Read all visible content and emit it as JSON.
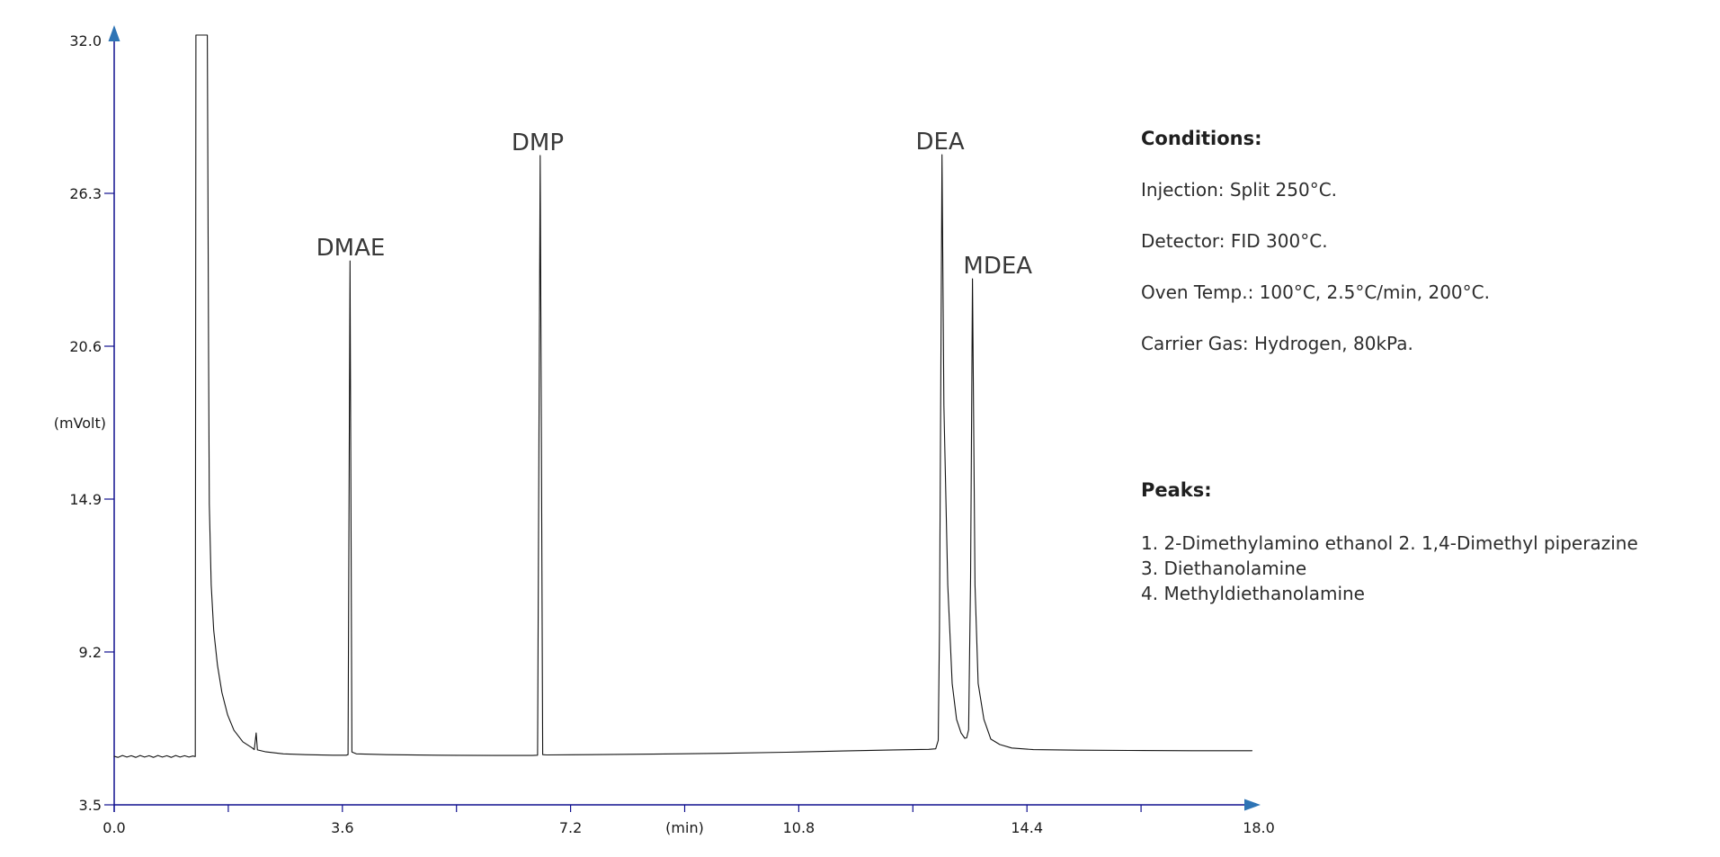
{
  "chart_data": {
    "type": "line",
    "title": "",
    "xlabel": "(min)",
    "ylabel": "(mVolt)",
    "xlim": [
      0.0,
      18.0
    ],
    "ylim": [
      3.5,
      32.0
    ],
    "grid": false,
    "x_major_ticks": [
      0.0,
      3.6,
      7.2,
      10.8,
      14.4,
      18.0
    ],
    "x_major_tick_labels": [
      "0.0",
      "3.6",
      "7.2",
      "10.8",
      "14.4",
      "18.0"
    ],
    "x_minor_ticks": [
      1.8,
      5.4,
      9.0,
      12.6,
      16.2
    ],
    "x_axis_label_at": 9.0,
    "y_ticks": [
      3.5,
      9.2,
      14.9,
      20.6,
      26.3,
      32.0
    ],
    "y_tick_labels": [
      "3.5",
      "9.2",
      "14.9",
      "20.6",
      "26.3",
      "32.0"
    ],
    "colors": {
      "axis": "#10108f",
      "arrow": "#2e74b5",
      "trace": "#131313",
      "tick_text": "#1a1a1a",
      "peak_label": "#383838"
    },
    "peak_annotations": [
      {
        "text": "DMAE",
        "retention_min": 3.72,
        "apex_mV": 23.78,
        "label_t": 3.73
      },
      {
        "text": "DMP",
        "retention_min": 6.72,
        "apex_mV": 27.71,
        "label_t": 6.68
      },
      {
        "text": "DEA",
        "retention_min": 13.06,
        "apex_mV": 27.74,
        "label_t": 13.03
      },
      {
        "text": "MDEA",
        "retention_min": 13.54,
        "apex_mV": 23.11,
        "label_t": 13.94
      }
    ],
    "series": [
      {
        "name": "FID signal",
        "points": [
          [
            0.0,
            5.31
          ],
          [
            0.06,
            5.27
          ],
          [
            0.13,
            5.34
          ],
          [
            0.2,
            5.28
          ],
          [
            0.27,
            5.33
          ],
          [
            0.34,
            5.27
          ],
          [
            0.41,
            5.34
          ],
          [
            0.48,
            5.28
          ],
          [
            0.55,
            5.33
          ],
          [
            0.62,
            5.27
          ],
          [
            0.69,
            5.34
          ],
          [
            0.76,
            5.28
          ],
          [
            0.83,
            5.33
          ],
          [
            0.9,
            5.27
          ],
          [
            0.97,
            5.34
          ],
          [
            1.04,
            5.28
          ],
          [
            1.11,
            5.33
          ],
          [
            1.18,
            5.28
          ],
          [
            1.24,
            5.32
          ],
          [
            1.28,
            5.3
          ],
          [
            1.29,
            32.2
          ],
          [
            1.47,
            32.2
          ],
          [
            1.49,
            20.1
          ],
          [
            1.5,
            14.7
          ],
          [
            1.53,
            11.7
          ],
          [
            1.57,
            10.0
          ],
          [
            1.63,
            8.7
          ],
          [
            1.7,
            7.69
          ],
          [
            1.79,
            6.85
          ],
          [
            1.89,
            6.28
          ],
          [
            2.03,
            5.85
          ],
          [
            2.18,
            5.62
          ],
          [
            2.21,
            5.56
          ],
          [
            2.24,
            6.18
          ],
          [
            2.26,
            5.55
          ],
          [
            2.38,
            5.48
          ],
          [
            2.67,
            5.4
          ],
          [
            3.02,
            5.37
          ],
          [
            3.45,
            5.35
          ],
          [
            3.66,
            5.35
          ],
          [
            3.69,
            5.37
          ],
          [
            3.72,
            23.78
          ],
          [
            3.75,
            5.47
          ],
          [
            3.82,
            5.4
          ],
          [
            4.3,
            5.37
          ],
          [
            5.1,
            5.35
          ],
          [
            6.0,
            5.34
          ],
          [
            6.6,
            5.34
          ],
          [
            6.68,
            5.35
          ],
          [
            6.72,
            27.71
          ],
          [
            6.76,
            5.37
          ],
          [
            6.82,
            5.36
          ],
          [
            7.5,
            5.37
          ],
          [
            8.5,
            5.39
          ],
          [
            9.6,
            5.42
          ],
          [
            10.6,
            5.46
          ],
          [
            11.5,
            5.51
          ],
          [
            12.3,
            5.55
          ],
          [
            12.85,
            5.57
          ],
          [
            12.96,
            5.59
          ],
          [
            13.0,
            5.9
          ],
          [
            13.02,
            10.0
          ],
          [
            13.06,
            27.74
          ],
          [
            13.09,
            18.4
          ],
          [
            13.15,
            11.7
          ],
          [
            13.22,
            8.03
          ],
          [
            13.29,
            6.69
          ],
          [
            13.36,
            6.18
          ],
          [
            13.42,
            5.98
          ],
          [
            13.45,
            6.0
          ],
          [
            13.48,
            6.3
          ],
          [
            13.51,
            12.0
          ],
          [
            13.54,
            23.11
          ],
          [
            13.58,
            11.7
          ],
          [
            13.63,
            8.03
          ],
          [
            13.72,
            6.69
          ],
          [
            13.83,
            5.95
          ],
          [
            13.97,
            5.75
          ],
          [
            14.16,
            5.62
          ],
          [
            14.5,
            5.56
          ],
          [
            15.2,
            5.54
          ],
          [
            16.0,
            5.53
          ],
          [
            17.0,
            5.52
          ],
          [
            17.95,
            5.52
          ]
        ]
      }
    ]
  },
  "conditions": {
    "heading": "Conditions:",
    "lines": [
      "Injection: Split 250°C.",
      "Detector: FID 300°C.",
      "Oven Temp.: 100°C, 2.5°C/min, 200°C.",
      "Carrier Gas: Hydrogen, 80kPa."
    ]
  },
  "peaks_legend": {
    "heading": "Peaks:",
    "lines": [
      "1. 2-Dimethylamino ethanol 2. 1,4-Dimethyl piperazine",
      "3. Diethanolamine",
      "4. Methyldiethanolamine"
    ]
  }
}
